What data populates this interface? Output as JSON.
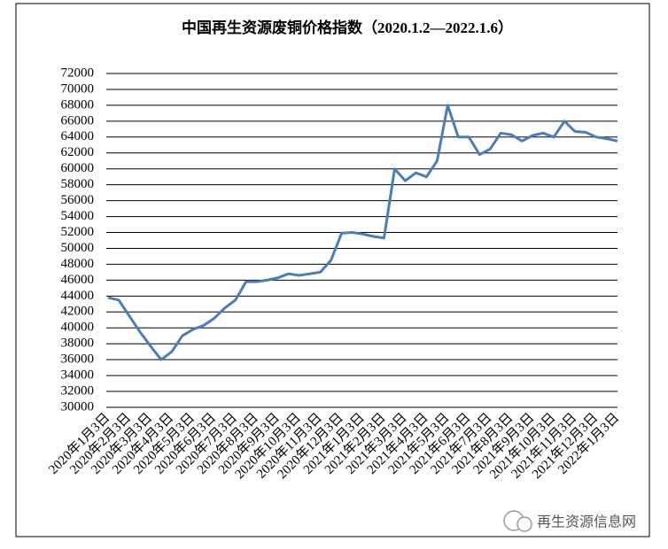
{
  "chart_data": {
    "type": "line",
    "title": "中国再生资源废铜价格指数（2020.1.2—2022.1.6）",
    "watermark": "再生资源信息网",
    "categories": [
      "2020年1月3日",
      null,
      "2020年2月3日",
      null,
      "2020年3月3日",
      null,
      "2020年4月3日",
      null,
      "2020年5月3日",
      null,
      "2020年6月3日",
      null,
      "2020年7月3日",
      null,
      "2020年8月3日",
      null,
      "2020年9月3日",
      null,
      "2020年10月3日",
      null,
      "2020年11月3日",
      null,
      "2020年12月3日",
      null,
      "2021年1月3日",
      null,
      "2021年2月3日",
      null,
      "2021年3月3日",
      null,
      "2021年4月3日",
      null,
      "2021年5月3日",
      null,
      "2021年6月3日",
      null,
      "2021年7月3日",
      null,
      "2021年8月3日",
      null,
      "2021年9月3日",
      null,
      "2021年10月3日",
      null,
      "2021年11月3日",
      null,
      "2021年12月3日",
      null,
      "2022年1月3日"
    ],
    "series": [
      {
        "name": "中国再生资源废铜价格指数",
        "color": "#4a7ebb",
        "values": [
          43800,
          43500,
          41500,
          39500,
          37700,
          36000,
          37000,
          39000,
          39800,
          40300,
          41200,
          42500,
          43500,
          45800,
          45800,
          46000,
          46300,
          46800,
          46600,
          46800,
          47000,
          48500,
          51900,
          52000,
          51800,
          51500,
          51300,
          60000,
          58500,
          59500,
          59000,
          61000,
          68000,
          64000,
          64000,
          61800,
          62500,
          64500,
          64300,
          63500,
          64200,
          64500,
          64000,
          66000,
          64700,
          64600,
          64000,
          63800,
          63500
        ]
      }
    ],
    "ylim": [
      30000,
      72000
    ],
    "yticks": [
      30000,
      32000,
      34000,
      36000,
      38000,
      40000,
      42000,
      44000,
      46000,
      48000,
      50000,
      52000,
      54000,
      56000,
      58000,
      60000,
      62000,
      64000,
      66000,
      68000,
      70000,
      72000
    ],
    "grid": true
  }
}
